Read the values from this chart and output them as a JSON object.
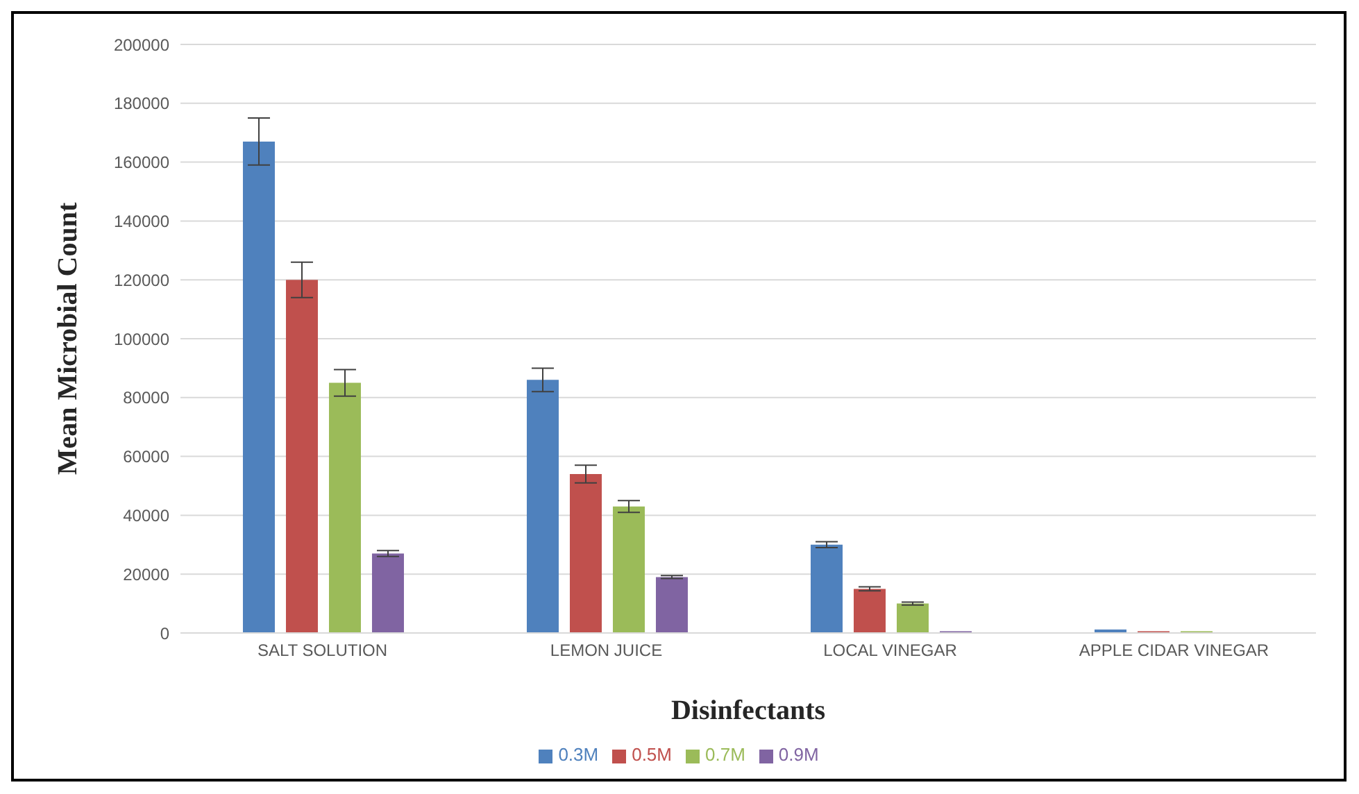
{
  "chart_data": {
    "type": "bar",
    "xlabel": "Disinfectants",
    "ylabel": "Mean Microbial Count",
    "categories": [
      "SALT SOLUTION",
      "LEMON JUICE",
      "LOCAL VINEGAR",
      "APPLE CIDAR VINEGAR"
    ],
    "series": [
      {
        "name": "0.3M",
        "color": "#4f81bd",
        "values": [
          167000,
          86000,
          30000,
          1200
        ],
        "errors": [
          8000,
          4000,
          1000,
          null
        ]
      },
      {
        "name": "0.5M",
        "color": "#c0504d",
        "values": [
          120000,
          54000,
          15000,
          600
        ],
        "errors": [
          6000,
          3000,
          700,
          null
        ]
      },
      {
        "name": "0.7M",
        "color": "#9bbb59",
        "values": [
          85000,
          43000,
          10000,
          600
        ],
        "errors": [
          4500,
          2000,
          500,
          null
        ]
      },
      {
        "name": "0.9M",
        "color": "#8064a2",
        "values": [
          27000,
          19000,
          600,
          0
        ],
        "errors": [
          1000,
          500,
          null,
          null
        ]
      }
    ],
    "ylim": [
      0,
      200000
    ],
    "yticks": [
      0,
      20000,
      40000,
      60000,
      80000,
      100000,
      120000,
      140000,
      160000,
      180000,
      200000
    ],
    "grid": "y",
    "legend": "bottom"
  }
}
